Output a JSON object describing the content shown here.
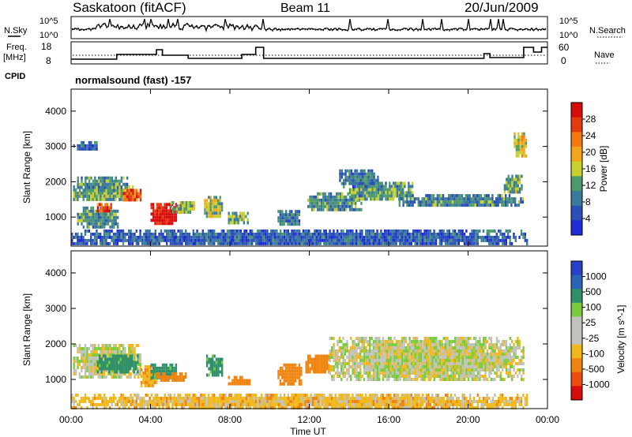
{
  "header": {
    "station": "Saskatoon (fitACF)",
    "beam": "Beam 11",
    "date": "20/Jun/2009"
  },
  "params": {
    "nsky_label": "N.Sky",
    "nsearch_label": "N.Search",
    "freq_label_1": "Freq.",
    "freq_label_2": "[MHz]",
    "nave_label": "Nave",
    "cpid_label": "CPID",
    "cpid_text": "normalsound (fast) -157",
    "noise_ticks": [
      "10^5",
      "10^0"
    ],
    "freq_ticks": [
      "18",
      "8"
    ],
    "nave_ticks": [
      "60",
      "0"
    ]
  },
  "colors": {
    "power": [
      "#1f2bd6",
      "#2a4fb8",
      "#3a7a9a",
      "#4e9a6a",
      "#c9cf2e",
      "#f2a51a",
      "#f07a10",
      "#e43a0e",
      "#d90c0c"
    ],
    "velocity": [
      "#2740c8",
      "#2b63b6",
      "#2e8f6a",
      "#79cc3b",
      "#c2c2bd",
      "#c2c2bd",
      "#f0b81a",
      "#ef8410",
      "#ee4c10",
      "#d90c0c"
    ]
  },
  "chart_data": [
    {
      "type": "heatmap",
      "title": "Power",
      "xlabel": "",
      "ylabel": "Slant Range [km]",
      "ylim": [
        200,
        4600
      ],
      "yticks": [
        "1000",
        "2000",
        "3000",
        "4000"
      ],
      "colorbar": {
        "label": "Power [dB]",
        "ticks": [
          "4",
          "8",
          "12",
          "16",
          "20",
          "24",
          "28"
        ],
        "range": [
          0,
          30
        ]
      },
      "series": [
        {
          "t": [
            0.1,
            3.3
          ],
          "r": [
            1500,
            1900
          ],
          "value": 12
        },
        {
          "t": [
            0.3,
            2.8
          ],
          "r": [
            1750,
            2150
          ],
          "value": 10
        },
        {
          "t": [
            0.1,
            1.3
          ],
          "r": [
            2900,
            3150
          ],
          "value": 6
        },
        {
          "t": [
            0.3,
            2.4
          ],
          "r": [
            700,
            1300
          ],
          "value": 10
        },
        {
          "t": [
            1.3,
            2.0
          ],
          "r": [
            1150,
            1400
          ],
          "value": 24
        },
        {
          "t": [
            2.5,
            3.5
          ],
          "r": [
            1450,
            1800
          ],
          "value": 24
        },
        {
          "t": [
            4.0,
            5.3
          ],
          "r": [
            800,
            1400
          ],
          "value": 29
        },
        {
          "t": [
            5.0,
            6.2
          ],
          "r": [
            1150,
            1450
          ],
          "value": 14
        },
        {
          "t": [
            6.7,
            7.6
          ],
          "r": [
            1000,
            1600
          ],
          "value": 14
        },
        {
          "t": [
            7.9,
            8.9
          ],
          "r": [
            850,
            1150
          ],
          "value": 12
        },
        {
          "t": [
            10.4,
            11.5
          ],
          "r": [
            800,
            1200
          ],
          "value": 8
        },
        {
          "t": [
            11.9,
            14.6
          ],
          "r": [
            1200,
            1700
          ],
          "value": 10
        },
        {
          "t": [
            14.0,
            17.2
          ],
          "r": [
            1500,
            2000
          ],
          "value": 11
        },
        {
          "t": [
            16.5,
            22.8
          ],
          "r": [
            1300,
            1650
          ],
          "value": 9
        },
        {
          "t": [
            13.5,
            15.5
          ],
          "r": [
            1900,
            2350
          ],
          "value": 8
        },
        {
          "t": [
            21.8,
            22.7
          ],
          "r": [
            1700,
            2200
          ],
          "value": 12
        },
        {
          "t": [
            22.3,
            22.9
          ],
          "r": [
            2700,
            3400
          ],
          "value": 16
        },
        {
          "t": [
            0.0,
            23.0
          ],
          "r": [
            220,
            650
          ],
          "value": 6
        }
      ]
    },
    {
      "type": "heatmap",
      "title": "Velocity",
      "xlabel": "Time UT",
      "ylabel": "Slant Range [km]",
      "ylim": [
        200,
        4600
      ],
      "yticks": [
        "1000",
        "2000",
        "3000",
        "4000"
      ],
      "xticks": [
        "00:00",
        "04:00",
        "08:00",
        "12:00",
        "16:00",
        "20:00",
        "00:00"
      ],
      "xlim": [
        0,
        24
      ],
      "colorbar": {
        "label": "Velocity [m s^-1]",
        "ticks": [
          "1000",
          "500",
          "100",
          "25",
          "-25",
          "-100",
          "-500",
          "-1000"
        ]
      },
      "series": [
        {
          "t": [
            0.1,
            3.5
          ],
          "r": [
            1100,
            2000
          ],
          "value": 0
        },
        {
          "t": [
            1.3,
            3.4
          ],
          "r": [
            1250,
            1700
          ],
          "value": 150
        },
        {
          "t": [
            3.5,
            4.3
          ],
          "r": [
            800,
            1400
          ],
          "value": -80
        },
        {
          "t": [
            4.0,
            5.3
          ],
          "r": [
            1050,
            1450
          ],
          "value": 150
        },
        {
          "t": [
            4.3,
            5.8
          ],
          "r": [
            1000,
            1200
          ],
          "value": -200
        },
        {
          "t": [
            6.8,
            7.6
          ],
          "r": [
            1100,
            1700
          ],
          "value": 150
        },
        {
          "t": [
            7.9,
            9.0
          ],
          "r": [
            850,
            1100
          ],
          "value": -300
        },
        {
          "t": [
            10.4,
            11.6
          ],
          "r": [
            900,
            1450
          ],
          "value": -200
        },
        {
          "t": [
            11.8,
            13.0
          ],
          "r": [
            1200,
            1700
          ],
          "value": -300
        },
        {
          "t": [
            13.0,
            22.8
          ],
          "r": [
            1000,
            2200
          ],
          "value": 0
        },
        {
          "t": [
            0.0,
            23.0
          ],
          "r": [
            220,
            600
          ],
          "value": -60
        }
      ]
    }
  ]
}
